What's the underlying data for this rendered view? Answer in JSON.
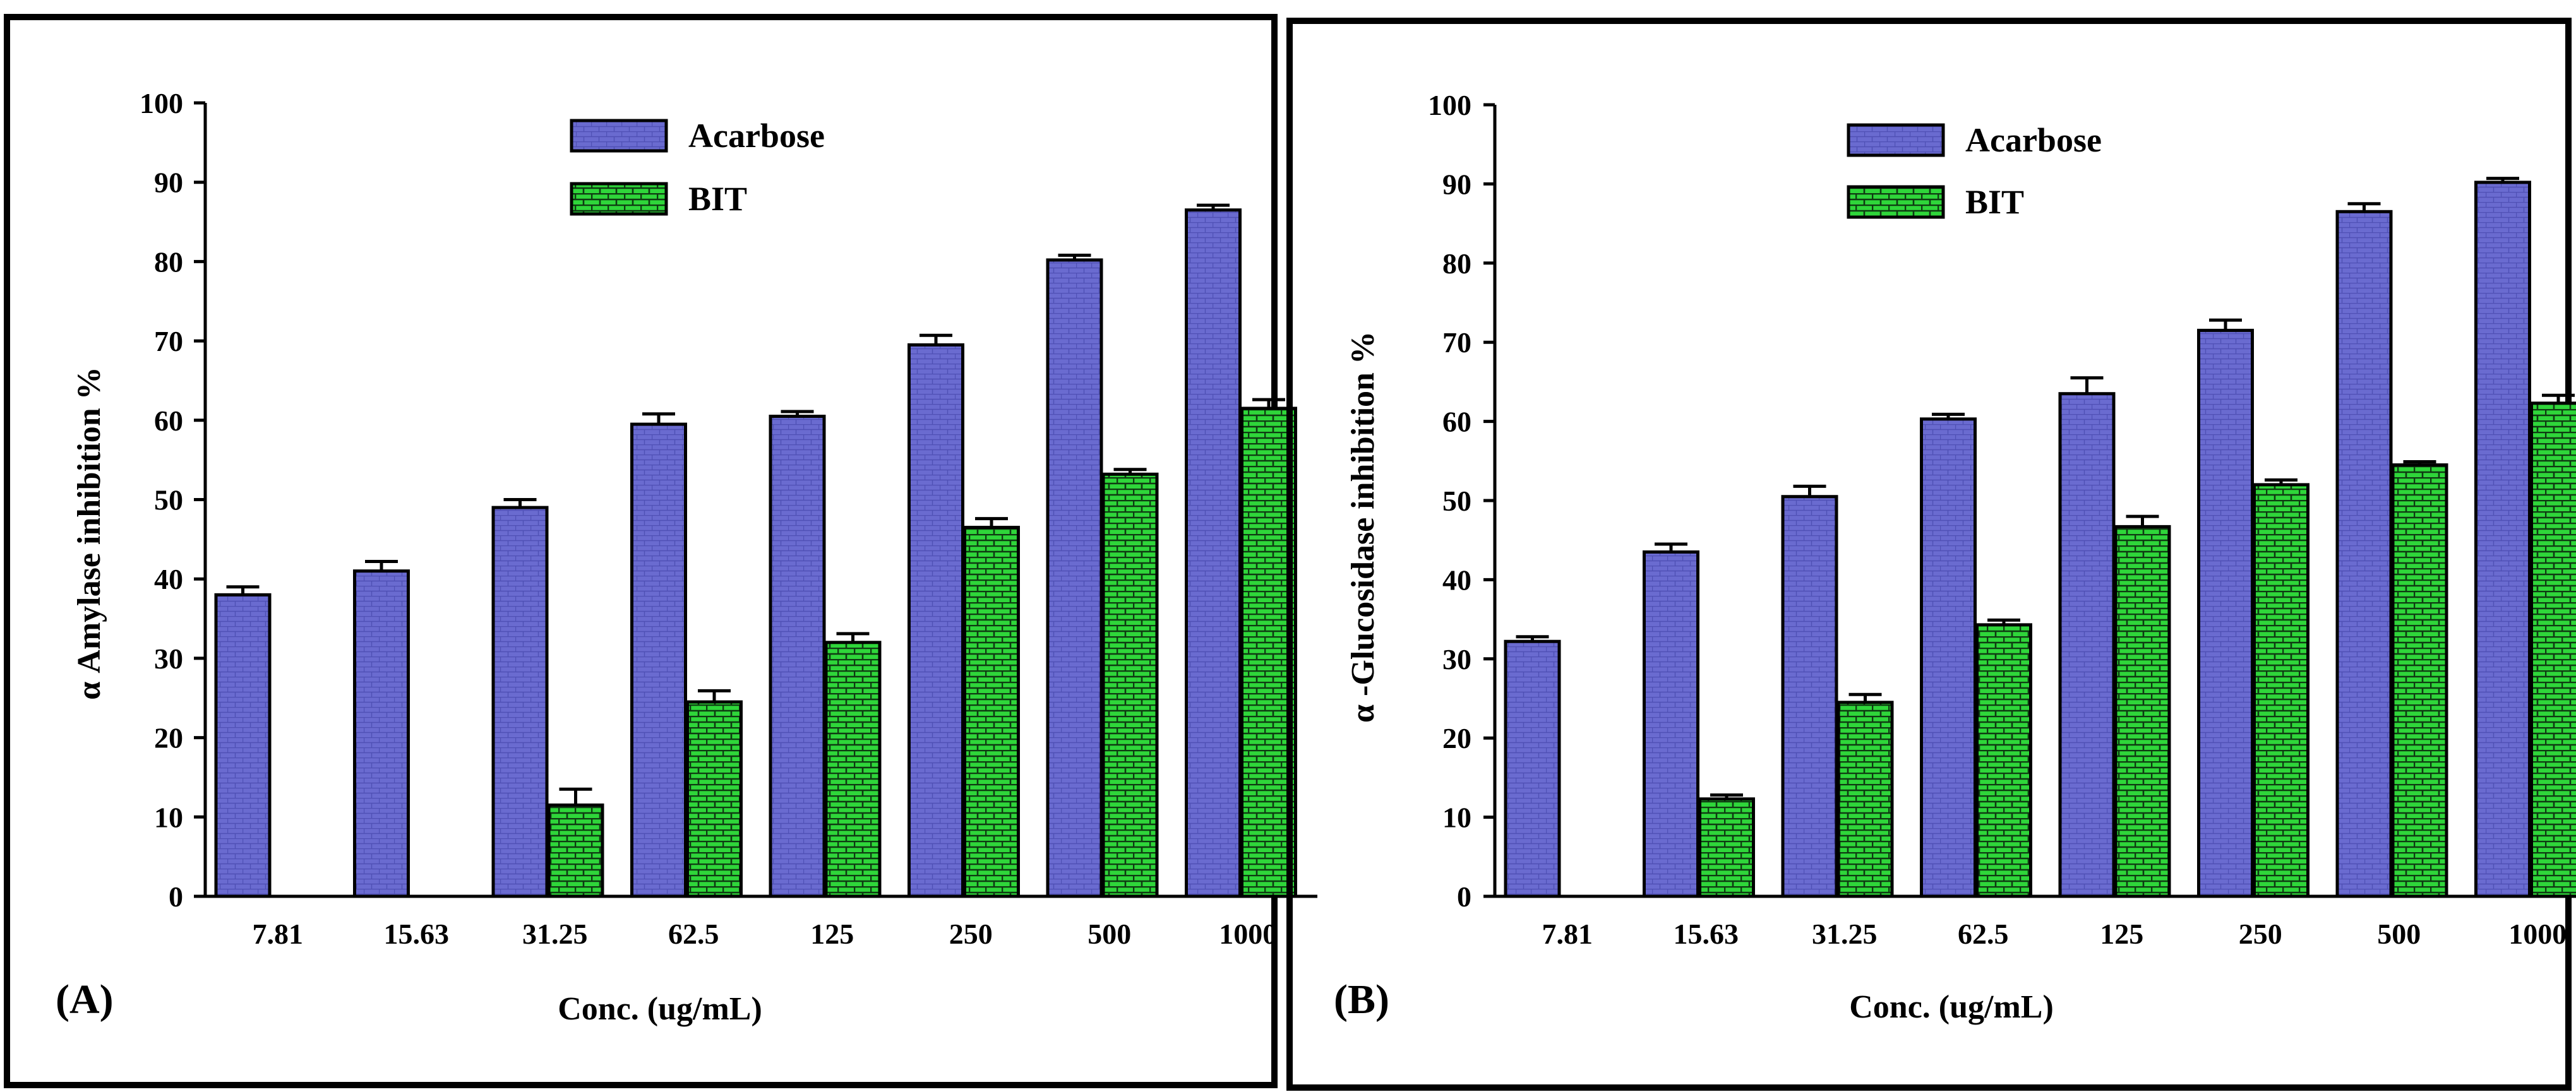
{
  "colors": {
    "acarbose_fill": "#6A6BD0",
    "bit_fill": "#2FD63A",
    "outline": "#000000",
    "background": "#ffffff"
  },
  "chart_data": [
    {
      "panel_label": "(A)",
      "type": "bar",
      "ylabel": "α Amylase inhibition %",
      "xlabel": "Conc. (ug/mL)",
      "ylim": [
        0,
        100
      ],
      "yticks": [
        0,
        10,
        20,
        30,
        40,
        50,
        60,
        70,
        80,
        90,
        100
      ],
      "categories": [
        "7.81",
        "15.63",
        "31.25",
        "62.5",
        "125",
        "250",
        "500",
        "1000"
      ],
      "legend_position": "top-center",
      "series": [
        {
          "name": "Acarbose",
          "values": [
            38,
            41,
            49,
            59.5,
            60.5,
            69.5,
            80.2,
            86.5
          ],
          "errors": [
            1.0,
            1.2,
            1.0,
            1.3,
            0.6,
            1.2,
            0.6,
            0.6
          ]
        },
        {
          "name": "BIT",
          "values": [
            null,
            null,
            11.5,
            24.5,
            32,
            46.5,
            53.2,
            61.5
          ],
          "errors": [
            null,
            null,
            2.0,
            1.4,
            1.1,
            1.1,
            0.6,
            1.1
          ]
        }
      ]
    },
    {
      "panel_label": "(B)",
      "type": "bar",
      "ylabel": "α -Glucosidase inhibition %",
      "xlabel": "Conc. (ug/mL)",
      "ylim": [
        0,
        100
      ],
      "yticks": [
        0,
        10,
        20,
        30,
        40,
        50,
        60,
        70,
        80,
        90,
        100
      ],
      "categories": [
        "7.81",
        "15.63",
        "31.25",
        "62.5",
        "125",
        "250",
        "500",
        "1000"
      ],
      "legend_position": "top-center",
      "series": [
        {
          "name": "Acarbose",
          "values": [
            32.2,
            43.5,
            50.5,
            60.3,
            63.5,
            71.5,
            86.5,
            90.2
          ],
          "errors": [
            0.6,
            1.0,
            1.3,
            0.6,
            2.0,
            1.3,
            1.0,
            0.5
          ]
        },
        {
          "name": "BIT",
          "values": [
            null,
            12.3,
            24.5,
            34.3,
            46.7,
            52,
            54.5,
            62.3
          ],
          "errors": [
            null,
            0.5,
            1.0,
            0.6,
            1.3,
            0.6,
            0.4,
            1.0
          ]
        }
      ]
    }
  ]
}
